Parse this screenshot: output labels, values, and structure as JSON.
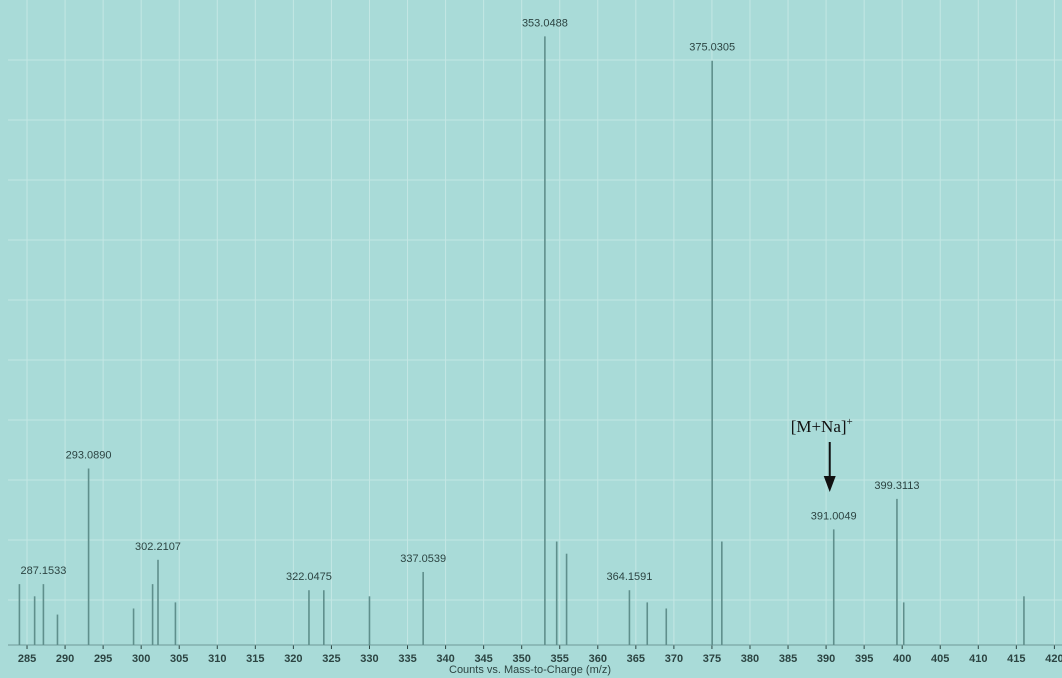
{
  "chart_data": {
    "type": "spectrum",
    "x_label": "Counts vs. Mass-to-Charge (m/z)",
    "x": [
      284.0,
      286.0,
      287.1533,
      289.0,
      293.089,
      299.0,
      301.5,
      302.2107,
      304.5,
      322.0475,
      324.0,
      330.0,
      337.0539,
      353.0488,
      354.6,
      355.9,
      364.1591,
      366.5,
      369.0,
      375.0305,
      376.3,
      391.0049,
      399.3113,
      400.2,
      416.0
    ],
    "values": [
      10,
      8,
      10,
      5,
      29,
      6,
      10,
      14,
      7,
      9,
      9,
      8,
      12,
      100,
      17,
      15,
      9,
      7,
      6,
      96,
      17,
      19,
      24,
      7,
      8
    ],
    "peak_labels": [
      null,
      null,
      "287.1533",
      null,
      "293.0890",
      null,
      null,
      "302.2107",
      null,
      "322.0475",
      null,
      null,
      "337.0539",
      "353.0488",
      null,
      null,
      "364.1591",
      null,
      null,
      "375.0305",
      null,
      "391.0049",
      "399.3113",
      null,
      null
    ],
    "color": "#5f8f8c",
    "xlim": [
      282.5,
      421
    ],
    "ylim": [
      0,
      104
    ],
    "xticks": [
      285,
      290,
      295,
      300,
      305,
      310,
      315,
      320,
      325,
      330,
      335,
      340,
      345,
      350,
      355,
      360,
      365,
      370,
      375,
      380,
      385,
      390,
      395,
      400,
      405,
      410,
      415,
      420
    ],
    "grid": true,
    "annotation": {
      "text": "[M+Na]",
      "superscript": "+",
      "x": 391.0049
    }
  }
}
